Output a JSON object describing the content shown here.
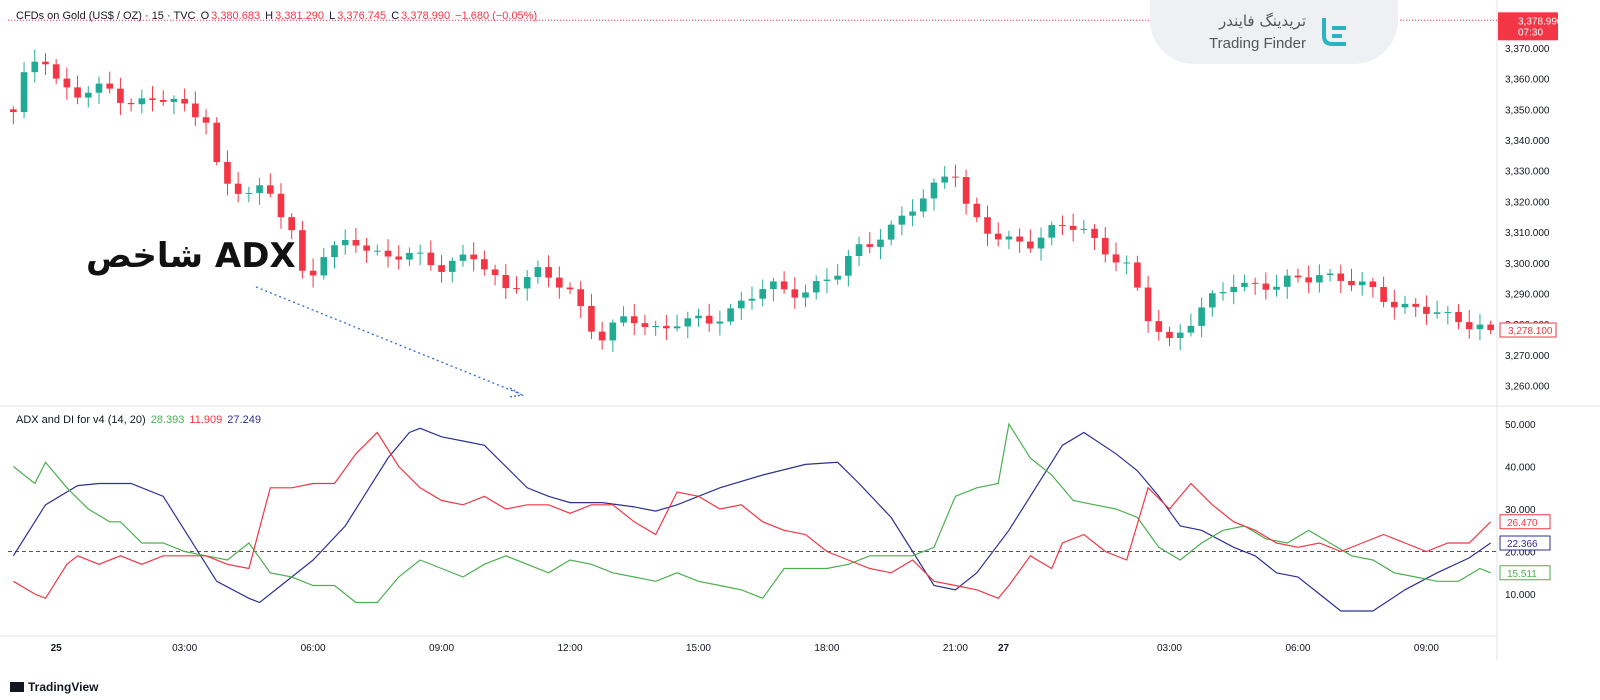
{
  "header": {
    "symbol": "CFDs on Gold (US$ / OZ) · 15 · TVC",
    "o_label": "O",
    "o_value": "3,380.683",
    "h_label": "H",
    "h_value": "3,381.290",
    "l_label": "L",
    "l_value": "3,376.745",
    "c_label": "C",
    "c_value": "3,378.990",
    "change": "−1.680 (−0.05%)"
  },
  "logo": {
    "fa": "تریدینگ فایندر",
    "en": "Trading Finder"
  },
  "annotation": "شاخص ADX",
  "footer": {
    "brand": "TradingView"
  },
  "colors": {
    "up": "#22ab94",
    "down": "#f23645",
    "adx": "#2e3192",
    "plus_di": "#4caf50",
    "minus_di": "#f23645",
    "grid": "#f0f3fa",
    "border": "#e0e3eb"
  },
  "chart_data": [
    {
      "type": "candlestick",
      "title": "CFDs on Gold (US$ / OZ) · 15 · TVC",
      "ylim": [
        3254,
        3383
      ],
      "yticks": [
        "3,370.000",
        "3,360.000",
        "3,350.000",
        "3,340.000",
        "3,330.000",
        "3,320.000",
        "3,310.000",
        "3,300.000",
        "3,290.000",
        "3,280.000",
        "3,270.000",
        "3,260.000"
      ],
      "ytick_values": [
        3370,
        3360,
        3350,
        3340,
        3330,
        3320,
        3310,
        3300,
        3290,
        3280,
        3270,
        3260
      ],
      "xticks": [
        "25",
        "03:00",
        "06:00",
        "09:00",
        "12:00",
        "15:00",
        "18:00",
        "21:00",
        "27",
        "03:00",
        "06:00",
        "09:00"
      ],
      "xtick_positions": [
        4,
        16,
        28,
        40,
        52,
        64,
        76,
        88,
        92.5,
        108,
        120,
        132
      ],
      "last_price_label": "3,378.990",
      "countdown": "07:30",
      "current_price_label": "3,278.100",
      "current_price": 3278.1,
      "last_price": 3378.99,
      "grid": false,
      "candles": []
    },
    {
      "type": "line",
      "title": "ADX and DI for v4 (14, 20)",
      "values_shown": {
        "plus_di": "28.393",
        "minus_di": "11.909",
        "adx": "27.249"
      },
      "ylim": [
        2,
        54
      ],
      "yticks": [
        "50.000",
        "40.000",
        "30.000",
        "20.000",
        "10.000"
      ],
      "ytick_values": [
        50,
        40,
        30,
        20,
        10
      ],
      "threshold": 20,
      "last_labels": {
        "minus_di": "26.470",
        "adx": "22.366",
        "plus_di": "15.511"
      },
      "series": [
        {
          "name": "ADX",
          "key": "adx",
          "points": [
            [
              0,
              19
            ],
            [
              3,
              31
            ],
            [
              6,
              35.5
            ],
            [
              8,
              36
            ],
            [
              11,
              36
            ],
            [
              14,
              33
            ],
            [
              16,
              25
            ],
            [
              19,
              13
            ],
            [
              22,
              9
            ],
            [
              23,
              8
            ],
            [
              25,
              12
            ],
            [
              28,
              18
            ],
            [
              31,
              26
            ],
            [
              35,
              42
            ],
            [
              37,
              48
            ],
            [
              38,
              49
            ],
            [
              40,
              47
            ],
            [
              42,
              46
            ],
            [
              44,
              45
            ],
            [
              46,
              40
            ],
            [
              48,
              35
            ],
            [
              50,
              33
            ],
            [
              52,
              31.5
            ],
            [
              55,
              31.5
            ],
            [
              58,
              30.5
            ],
            [
              60,
              29.5
            ],
            [
              62,
              31
            ],
            [
              66,
              35
            ],
            [
              70,
              38
            ],
            [
              74,
              40.5
            ],
            [
              77,
              41
            ],
            [
              79,
              36
            ],
            [
              82,
              28
            ],
            [
              84,
              20
            ],
            [
              86,
              12
            ],
            [
              88,
              11
            ],
            [
              90,
              15
            ],
            [
              93,
              25
            ],
            [
              95,
              33
            ],
            [
              98,
              45
            ],
            [
              100,
              48
            ],
            [
              103,
              43
            ],
            [
              105,
              39
            ],
            [
              107,
              33
            ],
            [
              109,
              26
            ],
            [
              111,
              25
            ],
            [
              114,
              21
            ],
            [
              116,
              19
            ],
            [
              118,
              15
            ],
            [
              120,
              14
            ],
            [
              122,
              10
            ],
            [
              124,
              6
            ],
            [
              127,
              6
            ],
            [
              130,
              11
            ],
            [
              133,
              15
            ],
            [
              136,
              18.5
            ],
            [
              138,
              22
            ]
          ]
        },
        {
          "name": "+DI",
          "key": "plus_di",
          "points": [
            [
              0,
              40
            ],
            [
              2,
              36
            ],
            [
              3,
              41
            ],
            [
              5,
              35
            ],
            [
              7,
              30
            ],
            [
              9,
              27
            ],
            [
              10,
              27
            ],
            [
              12,
              22
            ],
            [
              14,
              22
            ],
            [
              16,
              20
            ],
            [
              18,
              19
            ],
            [
              20,
              18
            ],
            [
              22,
              22
            ],
            [
              24,
              15
            ],
            [
              26,
              14
            ],
            [
              28,
              12
            ],
            [
              30,
              12
            ],
            [
              32,
              8
            ],
            [
              34,
              8
            ],
            [
              36,
              14
            ],
            [
              38,
              18
            ],
            [
              40,
              16
            ],
            [
              42,
              14
            ],
            [
              44,
              17
            ],
            [
              46,
              19
            ],
            [
              48,
              17
            ],
            [
              50,
              15
            ],
            [
              52,
              18
            ],
            [
              54,
              17
            ],
            [
              56,
              15
            ],
            [
              58,
              14
            ],
            [
              60,
              13
            ],
            [
              62,
              15
            ],
            [
              64,
              13
            ],
            [
              66,
              12
            ],
            [
              68,
              11
            ],
            [
              70,
              9
            ],
            [
              72,
              16
            ],
            [
              74,
              16
            ],
            [
              76,
              16
            ],
            [
              78,
              17
            ],
            [
              80,
              19
            ],
            [
              82,
              19
            ],
            [
              84,
              19
            ],
            [
              86,
              21
            ],
            [
              88,
              33
            ],
            [
              90,
              35
            ],
            [
              92,
              36
            ],
            [
              93,
              50
            ],
            [
              95,
              42
            ],
            [
              97,
              38
            ],
            [
              99,
              32
            ],
            [
              101,
              31
            ],
            [
              103,
              30
            ],
            [
              105,
              28
            ],
            [
              107,
              21
            ],
            [
              109,
              18
            ],
            [
              111,
              22
            ],
            [
              113,
              25
            ],
            [
              115,
              26
            ],
            [
              117,
              23
            ],
            [
              119,
              22
            ],
            [
              121,
              25
            ],
            [
              123,
              22
            ],
            [
              125,
              19
            ],
            [
              127,
              18
            ],
            [
              129,
              15
            ],
            [
              131,
              14
            ],
            [
              133,
              13
            ],
            [
              135,
              13
            ],
            [
              137,
              16
            ],
            [
              138,
              15
            ]
          ]
        },
        {
          "name": "−DI",
          "key": "minus_di",
          "points": [
            [
              0,
              13
            ],
            [
              2,
              10
            ],
            [
              3,
              9
            ],
            [
              5,
              17
            ],
            [
              6,
              19
            ],
            [
              8,
              17
            ],
            [
              10,
              19
            ],
            [
              12,
              17
            ],
            [
              14,
              19
            ],
            [
              16,
              19
            ],
            [
              18,
              19
            ],
            [
              20,
              17
            ],
            [
              22,
              16
            ],
            [
              24,
              35
            ],
            [
              26,
              35
            ],
            [
              28,
              36
            ],
            [
              30,
              36
            ],
            [
              32,
              43
            ],
            [
              34,
              48
            ],
            [
              36,
              40
            ],
            [
              38,
              35
            ],
            [
              40,
              32
            ],
            [
              42,
              31
            ],
            [
              44,
              33
            ],
            [
              46,
              30
            ],
            [
              48,
              31
            ],
            [
              50,
              31
            ],
            [
              52,
              29
            ],
            [
              54,
              31
            ],
            [
              56,
              31
            ],
            [
              58,
              27
            ],
            [
              60,
              24
            ],
            [
              62,
              34
            ],
            [
              64,
              33
            ],
            [
              66,
              30
            ],
            [
              68,
              31
            ],
            [
              70,
              27
            ],
            [
              72,
              25
            ],
            [
              74,
              24
            ],
            [
              76,
              20
            ],
            [
              78,
              18
            ],
            [
              80,
              16
            ],
            [
              82,
              15
            ],
            [
              84,
              18
            ],
            [
              86,
              13
            ],
            [
              88,
              12
            ],
            [
              90,
              11
            ],
            [
              92,
              9
            ],
            [
              93,
              12
            ],
            [
              95,
              19
            ],
            [
              97,
              16
            ],
            [
              98,
              22
            ],
            [
              100,
              24
            ],
            [
              102,
              20
            ],
            [
              104,
              18
            ],
            [
              106,
              35
            ],
            [
              108,
              30
            ],
            [
              110,
              36
            ],
            [
              112,
              31
            ],
            [
              114,
              27
            ],
            [
              116,
              25
            ],
            [
              118,
              22
            ],
            [
              120,
              21
            ],
            [
              122,
              22
            ],
            [
              124,
              20
            ],
            [
              126,
              22
            ],
            [
              128,
              24
            ],
            [
              130,
              22
            ],
            [
              132,
              20
            ],
            [
              134,
              22
            ],
            [
              136,
              22
            ],
            [
              138,
              27
            ]
          ]
        }
      ],
      "xticks": [
        "25",
        "03:00",
        "06:00",
        "09:00",
        "12:00",
        "15:00",
        "18:00",
        "21:00",
        "27",
        "03:00",
        "06:00",
        "09:00"
      ]
    }
  ]
}
